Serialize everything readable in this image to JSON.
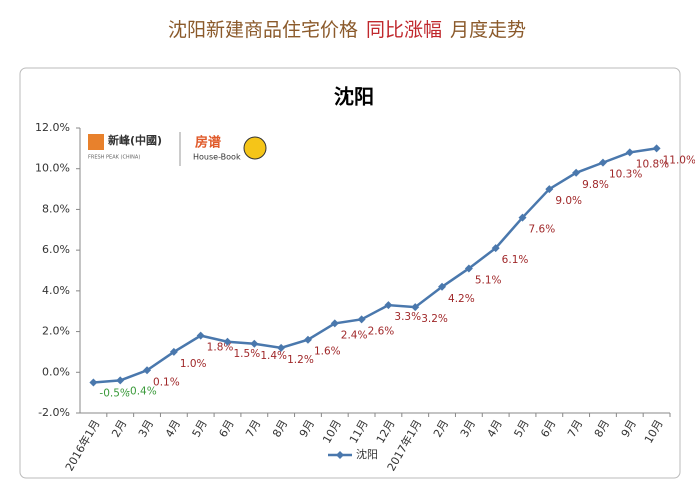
{
  "header": {
    "parts": [
      "沈阳新建商品住宅价格",
      "同比涨幅",
      "月度走势"
    ],
    "colors": [
      "#8b5a2b",
      "#c0282d",
      "#8b5a2b"
    ]
  },
  "logo_text": [
    "新峰(中國)",
    "FRESH PEAK (CHINA)",
    "房谱",
    "House-Book"
  ],
  "chart_data": {
    "type": "line",
    "title": "沈阳",
    "categories": [
      "2016年1月",
      "2月",
      "3月",
      "4月",
      "5月",
      "6月",
      "7月",
      "8月",
      "9月",
      "10月",
      "11月",
      "12月",
      "2017年1月",
      "2月",
      "3月",
      "4月",
      "5月",
      "6月",
      "7月",
      "8月",
      "9月",
      "10月"
    ],
    "series": [
      {
        "name": "沈阳",
        "color": "#4a78ad",
        "values": [
          -0.5,
          -0.4,
          0.1,
          1.0,
          1.8,
          1.5,
          1.4,
          1.2,
          1.6,
          2.4,
          2.6,
          3.3,
          3.2,
          4.2,
          5.1,
          6.1,
          7.6,
          9.0,
          9.8,
          10.3,
          10.8,
          11.0
        ],
        "value_labels": [
          "-0.5%",
          "-0.4%",
          "0.1%",
          "1.0%",
          "1.8%",
          "1.5%",
          "1.4%",
          "1.2%",
          "1.6%",
          "2.4%",
          "2.6%",
          "3.3%",
          "3.2%",
          "4.2%",
          "5.1%",
          "6.1%",
          "7.6%",
          "9.0%",
          "9.8%",
          "10.3%",
          "10.8%",
          "11.0%"
        ]
      }
    ],
    "label_color": "#a0282a",
    "negative_label_color": "#3a9a3a",
    "ylim": [
      -2,
      12
    ],
    "yticks": [
      {
        "value": -2,
        "label": "-2.0%"
      },
      {
        "value": 0,
        "label": "0.0%"
      },
      {
        "value": 2,
        "label": "2.0%"
      },
      {
        "value": 4,
        "label": "4.0%"
      },
      {
        "value": 6,
        "label": "6.0%"
      },
      {
        "value": 8,
        "label": "8.0%"
      },
      {
        "value": 10,
        "label": "10.0%"
      },
      {
        "value": 12,
        "label": "12.0%"
      }
    ],
    "grid": false,
    "legend": "bottom"
  }
}
